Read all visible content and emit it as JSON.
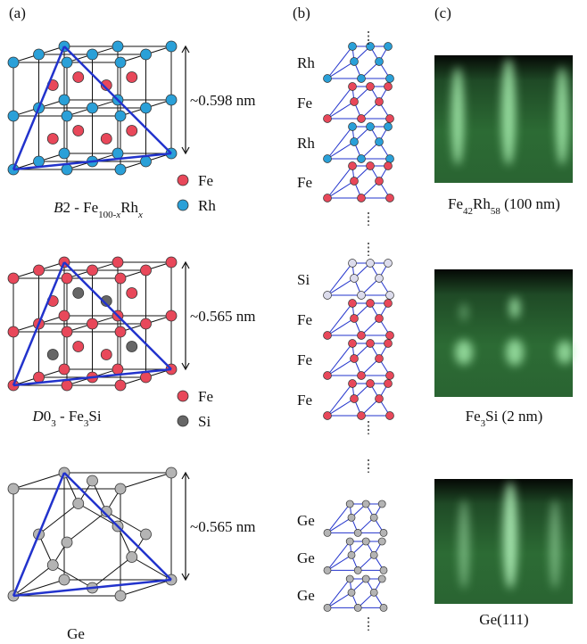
{
  "panel_labels": [
    "(a)",
    "(b)",
    "(c)"
  ],
  "rows": [
    {
      "lattice_constant": "~0.598 nm",
      "legend": [
        {
          "label": "Fe",
          "color": "#e8485a"
        },
        {
          "label": "Rh",
          "color": "#2aa0d8"
        }
      ],
      "structure_label": [
        {
          "text": "B",
          "italic": true
        },
        {
          "text": "2 - Fe"
        },
        {
          "text": "100-",
          "sub": true
        },
        {
          "text": "x",
          "sub": true,
          "italic": true
        },
        {
          "text": "Rh"
        },
        {
          "text": "x",
          "sub": true,
          "italic": true
        }
      ],
      "stack_labels": [
        "Rh",
        "Fe",
        "Rh",
        "Fe"
      ],
      "stack_colors": [
        "#2aa0d8",
        "#e8485a",
        "#2aa0d8",
        "#e8485a"
      ],
      "rheed_caption": [
        {
          "text": "Fe"
        },
        {
          "text": "42",
          "sub": true
        },
        {
          "text": "Rh"
        },
        {
          "text": "58",
          "sub": true
        },
        {
          "text": " (100 nm)"
        }
      ]
    },
    {
      "lattice_constant": "~0.565 nm",
      "legend": [
        {
          "label": "Fe",
          "color": "#e8485a"
        },
        {
          "label": "Si",
          "color": "#666666"
        }
      ],
      "structure_label": [
        {
          "text": "D",
          "italic": true
        },
        {
          "text": "0"
        },
        {
          "text": "3",
          "sub": true
        },
        {
          "text": " - Fe"
        },
        {
          "text": "3",
          "sub": true
        },
        {
          "text": "Si"
        }
      ],
      "stack_labels": [
        "Si",
        "Fe",
        "Fe",
        "Fe"
      ],
      "stack_colors": [
        "#dcdcec",
        "#e8485a",
        "#e8485a",
        "#e8485a"
      ],
      "rheed_caption": [
        {
          "text": "Fe"
        },
        {
          "text": "3",
          "sub": true
        },
        {
          "text": "Si (2 nm)"
        }
      ]
    },
    {
      "lattice_constant": "~0.565 nm",
      "legend": [],
      "structure_label": [
        {
          "text": "Ge"
        }
      ],
      "stack_labels": [
        "Ge",
        "Ge",
        "Ge"
      ],
      "stack_colors": [
        "#b4b4b4",
        "#b4b4b4",
        "#b4b4b4"
      ],
      "rheed_caption": [
        {
          "text": "Ge(111)"
        }
      ]
    }
  ]
}
